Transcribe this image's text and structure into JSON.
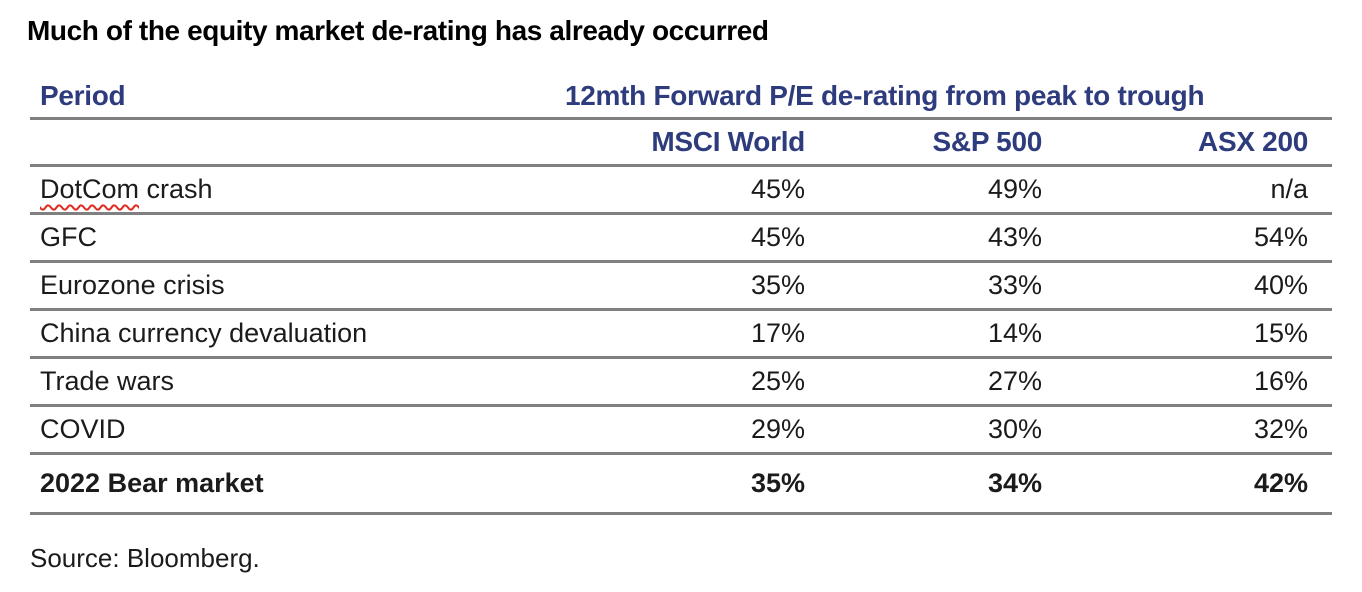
{
  "page": {
    "title": "Much of the equity market de-rating has already occurred",
    "source": "Source: Bloomberg."
  },
  "colors": {
    "heading_navy": "#2e3c7e",
    "rule_gray": "#808080",
    "spellcheck_red": "#e02b20",
    "text_black": "#1b1b1b"
  },
  "table": {
    "header": {
      "period_label": "Period",
      "group_label": "12mth Forward P/E de-rating from peak to trough",
      "columns": [
        "MSCI World",
        "S&P 500",
        "ASX 200"
      ]
    },
    "rows": [
      {
        "period": "DotCom crash",
        "period_flagged": "DotCom",
        "period_suffix": " crash",
        "msci_world": "45%",
        "sp500": "49%",
        "asx200": "n/a"
      },
      {
        "period": "GFC",
        "msci_world": "45%",
        "sp500": "43%",
        "asx200": "54%"
      },
      {
        "period": "Eurozone crisis",
        "msci_world": "35%",
        "sp500": "33%",
        "asx200": "40%"
      },
      {
        "period": "China currency devaluation",
        "msci_world": "17%",
        "sp500": "14%",
        "asx200": "15%"
      },
      {
        "period": "Trade wars",
        "msci_world": "25%",
        "sp500": "27%",
        "asx200": "16%"
      },
      {
        "period": "COVID",
        "msci_world": "29%",
        "sp500": "30%",
        "asx200": "32%"
      },
      {
        "period": "2022 Bear market",
        "msci_world": "35%",
        "sp500": "34%",
        "asx200": "42%"
      }
    ]
  },
  "chart_data": {
    "type": "table",
    "title": "Much of the equity market de-rating has already occurred",
    "group_header": "12mth Forward P/E de-rating from peak to trough",
    "categories": [
      "DotCom crash",
      "GFC",
      "Eurozone crisis",
      "China currency devaluation",
      "Trade wars",
      "COVID",
      "2022 Bear market"
    ],
    "series": [
      {
        "name": "MSCI World",
        "values": [
          "45%",
          "45%",
          "35%",
          "17%",
          "25%",
          "29%",
          "35%"
        ]
      },
      {
        "name": "S&P 500",
        "values": [
          "49%",
          "43%",
          "33%",
          "14%",
          "27%",
          "30%",
          "34%"
        ]
      },
      {
        "name": "ASX 200",
        "values": [
          "n/a",
          "54%",
          "40%",
          "15%",
          "16%",
          "32%",
          "42%"
        ]
      }
    ],
    "source": "Source: Bloomberg."
  }
}
